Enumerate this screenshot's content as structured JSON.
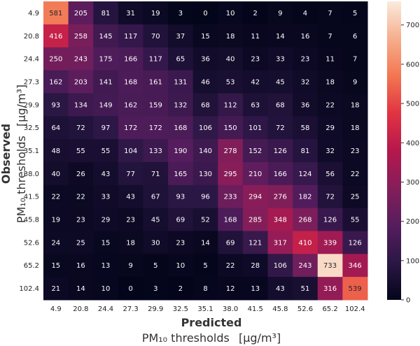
{
  "chart_data": {
    "type": "heatmap",
    "x_categories": [
      "4.9",
      "20.8",
      "24.4",
      "27.3",
      "29.9",
      "32.5",
      "35.1",
      "38.0",
      "41.5",
      "45.8",
      "52.6",
      "65.2",
      "102.4"
    ],
    "y_categories": [
      "4.9",
      "20.8",
      "24.4",
      "27.3",
      "29.9",
      "32.5",
      "35.1",
      "38.0",
      "41.5",
      "45.8",
      "52.6",
      "65.2",
      "102.4"
    ],
    "values": [
      [
        581,
        205,
        81,
        31,
        19,
        3,
        0,
        10,
        2,
        9,
        4,
        7,
        5
      ],
      [
        416,
        258,
        145,
        117,
        70,
        37,
        15,
        18,
        11,
        14,
        16,
        7,
        6
      ],
      [
        250,
        243,
        175,
        166,
        117,
        65,
        36,
        40,
        23,
        33,
        23,
        11,
        7
      ],
      [
        162,
        203,
        141,
        168,
        161,
        131,
        46,
        53,
        42,
        45,
        32,
        18,
        9
      ],
      [
        93,
        134,
        149,
        162,
        159,
        132,
        68,
        112,
        63,
        68,
        36,
        22,
        18
      ],
      [
        64,
        72,
        97,
        172,
        172,
        168,
        106,
        150,
        101,
        72,
        58,
        29,
        18
      ],
      [
        48,
        55,
        55,
        104,
        133,
        190,
        140,
        278,
        152,
        126,
        81,
        32,
        23
      ],
      [
        40,
        26,
        43,
        77,
        71,
        165,
        130,
        295,
        210,
        166,
        124,
        56,
        22
      ],
      [
        22,
        22,
        33,
        43,
        67,
        93,
        96,
        233,
        294,
        276,
        182,
        72,
        25
      ],
      [
        19,
        23,
        29,
        23,
        45,
        69,
        52,
        168,
        285,
        348,
        268,
        126,
        55
      ],
      [
        24,
        25,
        15,
        18,
        30,
        23,
        14,
        69,
        121,
        317,
        410,
        339,
        126
      ],
      [
        15,
        16,
        13,
        9,
        5,
        10,
        5,
        22,
        28,
        106,
        243,
        733,
        346
      ],
      [
        21,
        14,
        10,
        0,
        3,
        2,
        8,
        12,
        13,
        43,
        51,
        316,
        539
      ]
    ],
    "xlabel_bold": "Predicted",
    "xlabel_main": "PM₁₀ thresholds",
    "xlabel_unit": "[μg/m³]",
    "ylabel_bold": "Observed",
    "ylabel_main": "PM₁₀ thresholds",
    "ylabel_unit": "[μg/m³]",
    "colorbar": {
      "min": 0,
      "max": 760,
      "ticks": [
        0,
        100,
        200,
        300,
        400,
        500,
        600,
        700
      ],
      "colormap": "rocket"
    }
  }
}
